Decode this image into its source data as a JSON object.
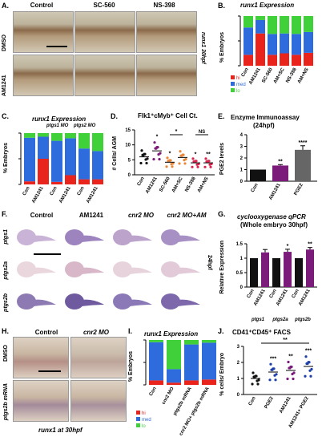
{
  "panels": {
    "A": "A.",
    "B": "B.",
    "C": "C.",
    "D": "D.",
    "E": "E.",
    "F": "F.",
    "G": "G.",
    "H": "H.",
    "I": "I.",
    "J": "J."
  },
  "A": {
    "cols": [
      "Control",
      "SC-560",
      "NS-398"
    ],
    "rows": [
      "DMSO",
      "AM1241"
    ],
    "side": "runx1 30hpf"
  },
  "B": {
    "title": "runx1 Expression",
    "ylabel": "% Embryos",
    "legend": [
      "hi",
      "med",
      "lo"
    ],
    "colors": [
      "#e8241c",
      "#2e6bdc",
      "#3fd03a"
    ]
  },
  "C": {
    "title": "runx1 Expression",
    "ylabel": "% Embryos",
    "mo1": "ptgs1 MO",
    "mo2": "ptgs2 MO"
  },
  "D": {
    "title": "Flk1⁺cMyb⁺ Cell Ct.",
    "ylabel": "# Cells/ AGM",
    "star": "*",
    "ns": "NS"
  },
  "E": {
    "title": "Enzyme Immunoassay",
    "subtitle": "(24hpf)",
    "ylabel": "PGE2 levels"
  },
  "F": {
    "cols": [
      "Control",
      "AM1241",
      "cnr2 MO",
      "cnr2 MO+AM"
    ],
    "rows": [
      "ptgs1",
      "ptgs2a",
      "ptgs2b"
    ],
    "side": "24hpf"
  },
  "G": {
    "title": "cyclooxygenase qPCR",
    "subtitle": "(Whole embryo 30hpf)",
    "ylabel": "Relative Expression",
    "groups": [
      "ptgs1",
      "ptgs2a",
      "ptgs2b"
    ]
  },
  "H": {
    "cols": [
      "Control",
      "cnr2 MO"
    ],
    "rows": [
      "DMSO",
      "ptgs2b mRNA"
    ],
    "bottom": "runx1 at 30hpf"
  },
  "I": {
    "title": "runx1 Expression",
    "ylabel": "% Embryos",
    "legend": [
      "hi",
      "med",
      "lo"
    ]
  },
  "J": {
    "title": "CD41⁺CD45⁺ FACS",
    "ylabel": "% cells/ Embryo",
    "sig": "**"
  },
  "chart_data": [
    {
      "panel": "B",
      "type": "bar",
      "stacked": true,
      "categories": [
        "Con",
        "AM1241",
        "SC-560",
        "AM+SC",
        "NS-398",
        "AM+NS"
      ],
      "series": [
        {
          "name": "hi",
          "values": [
            22,
            65,
            22,
            25,
            22,
            26
          ]
        },
        {
          "name": "med",
          "values": [
            55,
            27,
            42,
            40,
            42,
            42
          ]
        },
        {
          "name": "lo",
          "values": [
            23,
            8,
            36,
            35,
            36,
            32
          ]
        }
      ],
      "ylim": [
        0,
        100
      ]
    },
    {
      "panel": "C",
      "type": "bar",
      "stacked": true,
      "categories": [
        "Con",
        "AM1241",
        "Con",
        "AM1241",
        "Con",
        "AM1241"
      ],
      "series": [
        {
          "name": "hi",
          "values": [
            6,
            50,
            5,
            18,
            10,
            10
          ]
        },
        {
          "name": "med",
          "values": [
            85,
            43,
            80,
            72,
            60,
            55
          ]
        },
        {
          "name": "lo",
          "values": [
            9,
            7,
            15,
            10,
            30,
            35
          ]
        }
      ],
      "ylim": [
        0,
        100
      ]
    },
    {
      "panel": "D",
      "type": "scatter",
      "categories": [
        "Con",
        "AM1241",
        "SC-560",
        "AM+SC",
        "NS-398",
        "AM+NS"
      ],
      "means": [
        6.0,
        8.0,
        4.2,
        5.8,
        4.0,
        4.0
      ],
      "sig": [
        "",
        "*",
        "*",
        "",
        "*",
        "**"
      ],
      "ylim": [
        0,
        15
      ],
      "ticks": [
        0,
        5,
        10,
        15
      ]
    },
    {
      "panel": "E",
      "type": "bar",
      "categories": [
        "Con",
        "AM1241",
        "PGE2"
      ],
      "values": [
        1.0,
        1.35,
        2.7
      ],
      "errors": [
        0,
        0.08,
        0.35
      ],
      "sig": [
        "",
        "**",
        "****"
      ],
      "ylim": [
        0,
        4
      ],
      "ticks": [
        0,
        1,
        2,
        3,
        4
      ]
    },
    {
      "panel": "G",
      "type": "bar",
      "categories": [
        "Con",
        "AM1241",
        "Con",
        "AM1241",
        "Con",
        "AM1241"
      ],
      "values": [
        1.0,
        1.2,
        1.0,
        1.22,
        1.0,
        1.3
      ],
      "errors": [
        0,
        0.1,
        0,
        0.09,
        0,
        0.07
      ],
      "sig": [
        "",
        "",
        "",
        "*",
        "",
        "**"
      ],
      "ylim": [
        0,
        1.5
      ],
      "ticks": [
        0.0,
        0.5,
        1.0,
        1.5
      ]
    },
    {
      "panel": "I",
      "type": "bar",
      "stacked": true,
      "categories": [
        "Con",
        "cnr2 MO",
        "ptgs2b mRNA",
        "cnr2 MO+ ptgs2b mRNA"
      ],
      "series": [
        {
          "name": "hi",
          "values": [
            10,
            5,
            10,
            12
          ]
        },
        {
          "name": "med",
          "values": [
            85,
            30,
            80,
            82
          ]
        },
        {
          "name": "lo",
          "values": [
            5,
            65,
            10,
            6
          ]
        }
      ],
      "ylim": [
        0,
        100
      ]
    },
    {
      "panel": "J",
      "type": "scatter",
      "categories": [
        "Con",
        "PGE2",
        "AM1241",
        "AM1241+ PGE2"
      ],
      "means": [
        1.0,
        1.4,
        1.5,
        1.75
      ],
      "sig": [
        "",
        "***",
        "**",
        "***"
      ],
      "ylim": [
        0,
        3
      ],
      "ticks": [
        0,
        1,
        2,
        3
      ]
    }
  ]
}
